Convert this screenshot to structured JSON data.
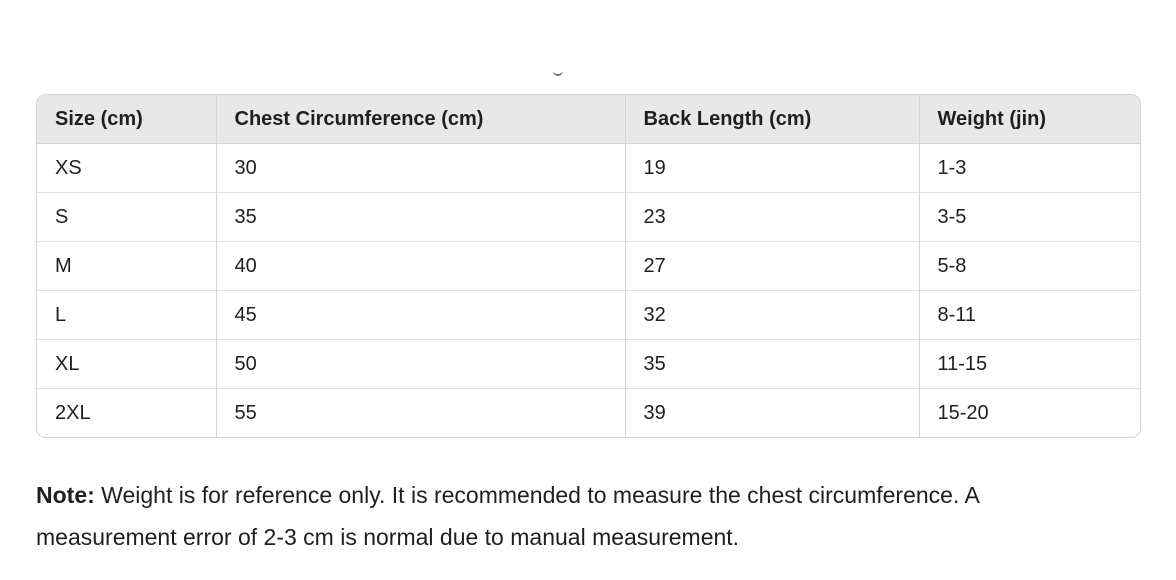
{
  "size_table": {
    "headers": [
      "Size (cm)",
      "Chest Circumference (cm)",
      "Back Length (cm)",
      "Weight (jin)"
    ],
    "rows": [
      [
        "XS",
        "30",
        "19",
        "1-3"
      ],
      [
        "S",
        "35",
        "23",
        "3-5"
      ],
      [
        "M",
        "40",
        "27",
        "5-8"
      ],
      [
        "L",
        "45",
        "32",
        "8-11"
      ],
      [
        "XL",
        "50",
        "35",
        "11-15"
      ],
      [
        "2XL",
        "55",
        "39",
        "15-20"
      ]
    ]
  },
  "note": {
    "label": "Note:",
    "text": " Weight is for reference only. It is recommended to measure the chest circumference. A measurement error of 2-3 cm is normal due to manual measurement."
  }
}
